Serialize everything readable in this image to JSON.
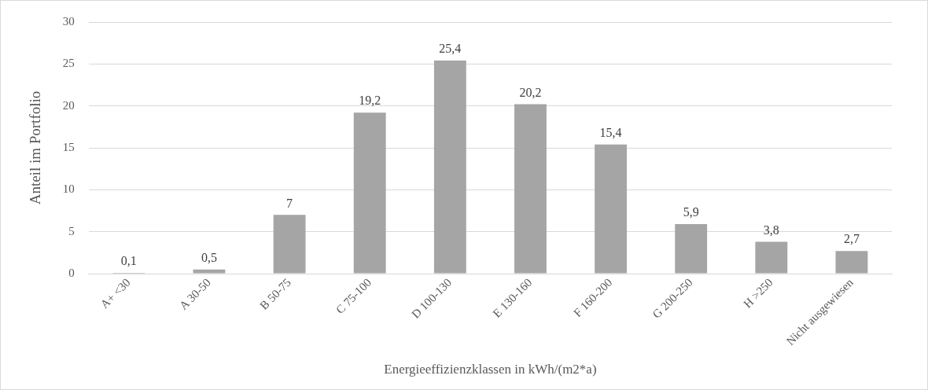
{
  "chart_data": {
    "type": "bar",
    "xlabel": "Energieeffizienzklassen in kWh/(m2*a)",
    "ylabel": "Anteil im Portfolio",
    "categories": [
      "A+ <30",
      "A 30-50",
      "B 50-75",
      "C 75-100",
      "D 100-130",
      "E 130-160",
      "F 160-200",
      "G 200-250",
      "H >250",
      "Nicht ausgewiesen"
    ],
    "values": [
      0.1,
      0.5,
      7,
      19.2,
      25.4,
      20.2,
      15.4,
      5.9,
      3.8,
      2.7
    ],
    "value_labels": [
      "0,1",
      "0,5",
      "7",
      "19,2",
      "25,4",
      "20,2",
      "15,4",
      "5,9",
      "3,8",
      "2,7"
    ],
    "color": "#a5a5a5",
    "ylim": [
      0,
      30
    ],
    "yticks": [
      0,
      5,
      10,
      15,
      20,
      25,
      30
    ],
    "grid": "y",
    "legend": false
  }
}
